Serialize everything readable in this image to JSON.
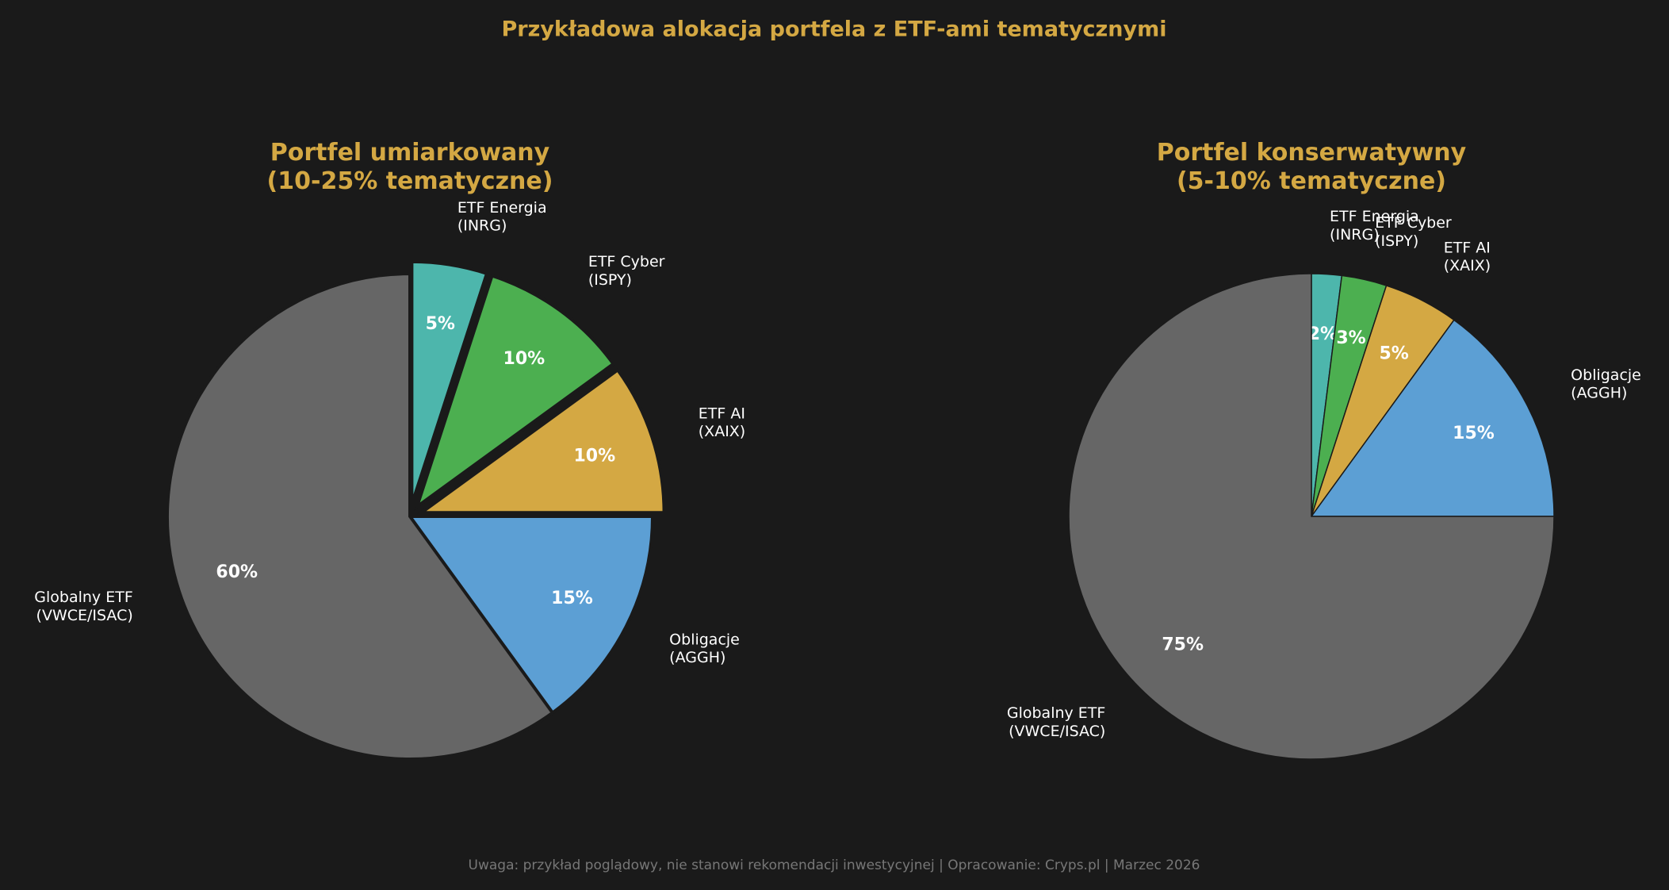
{
  "title": "Przykładowa alokacja portfela z ETF-ami tematycznymi",
  "footnote": "Uwaga: przykład poglądowy, nie stanowi rekomendacji inwestycyjnej | Opracowanie: Cryps.pl | Marzec 2026",
  "chart_data": [
    {
      "type": "pie",
      "title": "Portfel umiarkowany\n(10-25% tematyczne)",
      "categories": [
        "ETF Energia\n(INRG)",
        "ETF Cyber\n(ISPY)",
        "ETF AI\n(XAIX)",
        "Obligacje\n(AGGH)",
        "Globalny ETF\n(VWCE/ISAC)"
      ],
      "values": [
        5,
        10,
        10,
        15,
        60
      ],
      "value_labels": [
        "5%",
        "10%",
        "10%",
        "15%",
        "60%"
      ],
      "colors": [
        "#4db6ac",
        "#4caf50",
        "#d4a843",
        "#5c9fd4",
        "#666666"
      ]
    },
    {
      "type": "pie",
      "title": "Portfel konserwatywny\n(5-10% tematyczne)",
      "categories": [
        "ETF Energia\n(INRG)",
        "ETF Cyber\n(ISPY)",
        "ETF AI\n(XAIX)",
        "Obligacje\n(AGGH)",
        "Globalny ETF\n(VWCE/ISAC)"
      ],
      "values": [
        2,
        3,
        5,
        15,
        75
      ],
      "value_labels": [
        "2%",
        "3%",
        "5%",
        "15%",
        "75%"
      ],
      "colors": [
        "#4db6ac",
        "#4caf50",
        "#d4a843",
        "#5c9fd4",
        "#666666"
      ]
    }
  ]
}
